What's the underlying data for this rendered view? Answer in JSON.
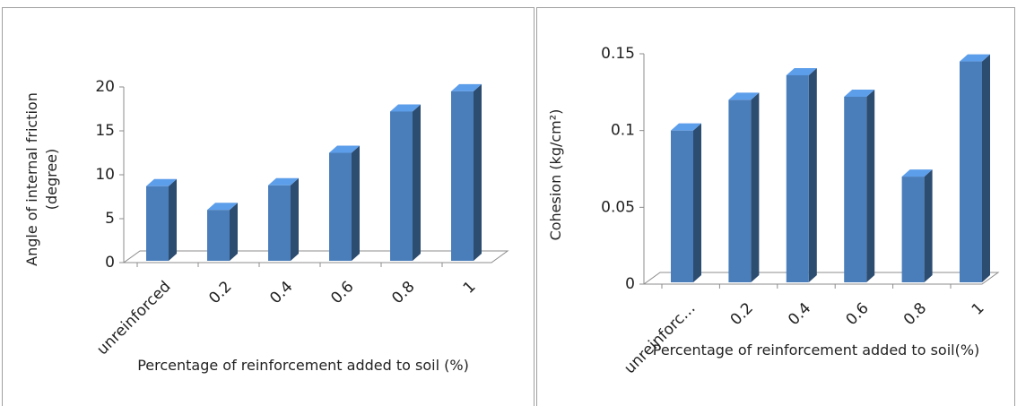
{
  "chart_data": [
    {
      "type": "bar3d",
      "categories": [
        "unreinforced",
        "0.2",
        "0.4",
        "0.6",
        "0.8",
        "1"
      ],
      "values": [
        8.7,
        6,
        8.8,
        12.5,
        17.2,
        19.5
      ],
      "color": "#4a7ebb",
      "ylim": [
        0,
        20
      ],
      "yticks": [
        0,
        5,
        10,
        15,
        20
      ],
      "y_label": "Angle of internal friction (degree)",
      "x_label": "Percentage of reinforcement  added to soil (%)"
    },
    {
      "type": "bar3d",
      "categories": [
        "unreinforc…",
        "0.2",
        "0.4",
        "0.6",
        "0.8",
        "1"
      ],
      "values": [
        0.1,
        0.12,
        0.136,
        0.122,
        0.07,
        0.145
      ],
      "color": "#4a7ebb",
      "ylim": [
        0,
        0.15
      ],
      "yticks": [
        0,
        0.05,
        0.1,
        0.15
      ],
      "y_label": "Cohesion (kg/cm²)",
      "x_label": "Percentage of reinforcement  added to soil(%)"
    }
  ]
}
